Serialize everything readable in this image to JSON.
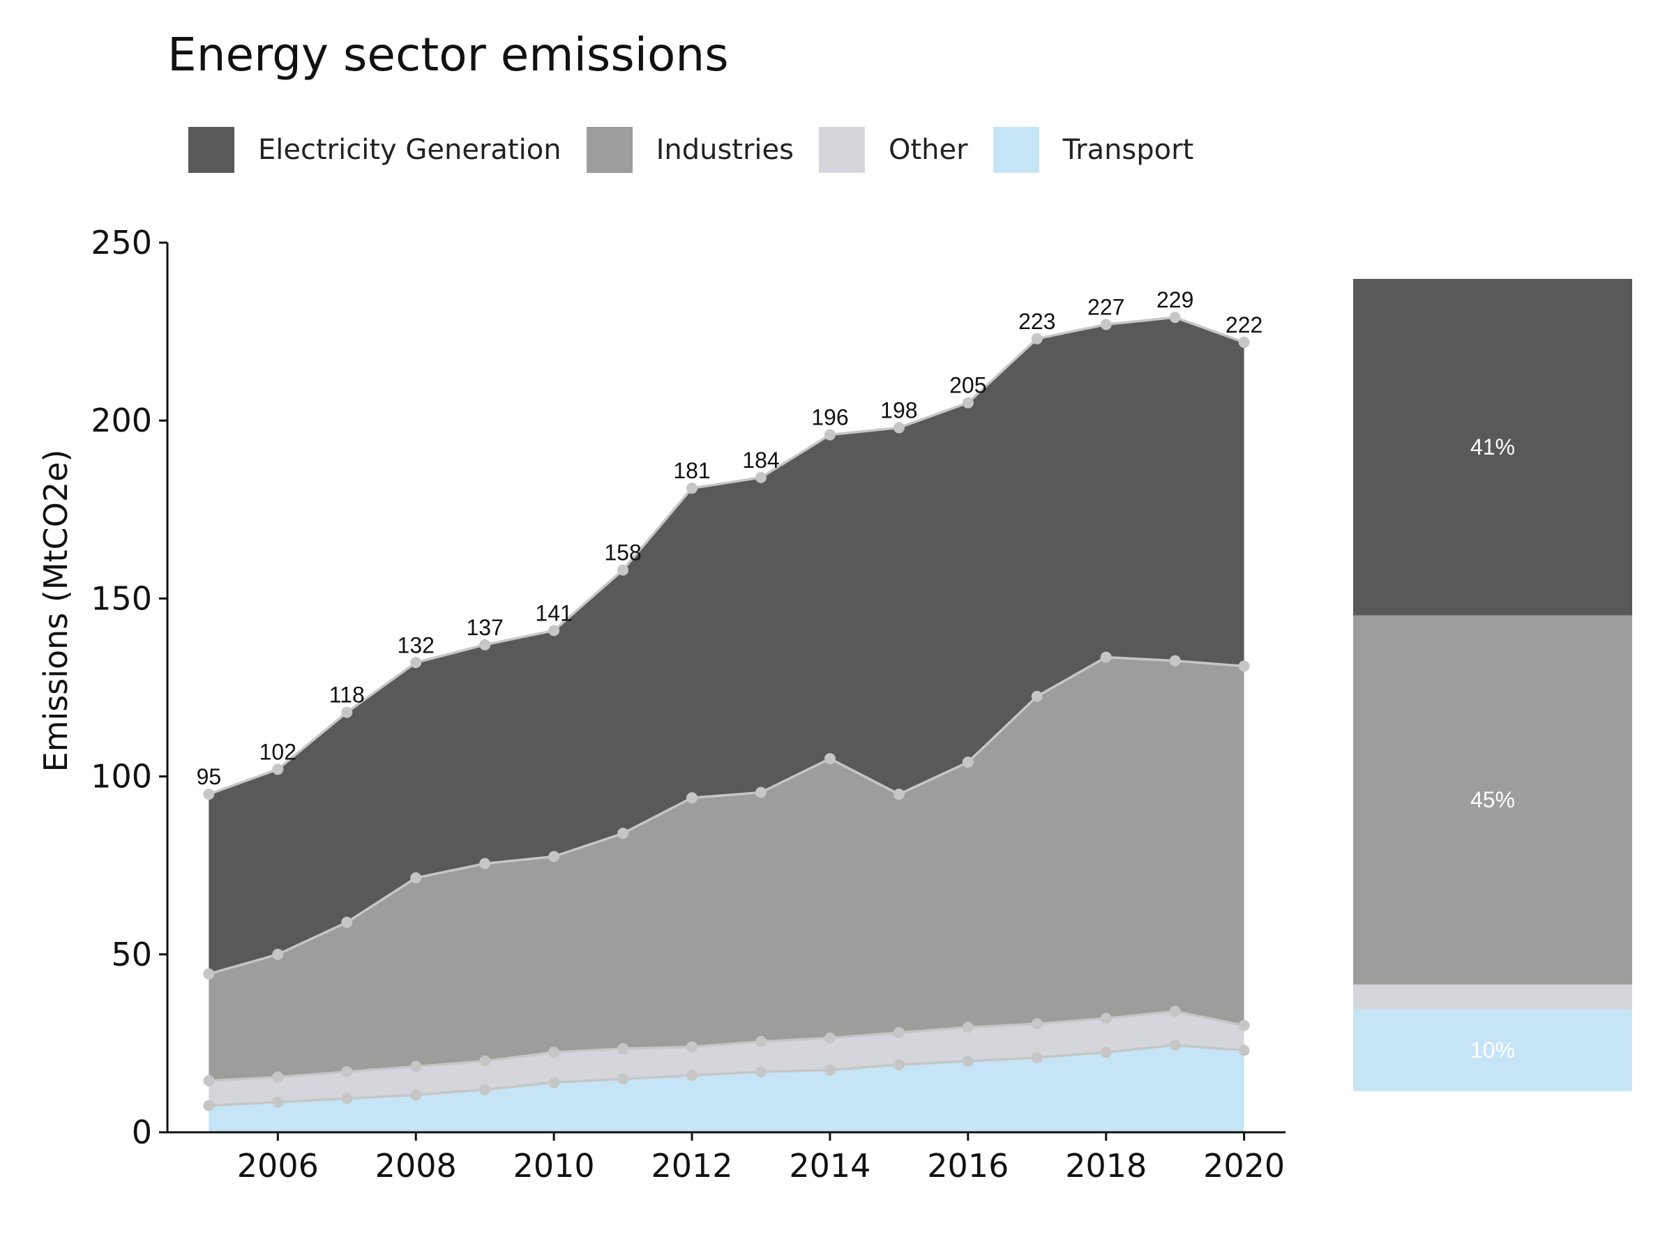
{
  "chart_data": {
    "type": "area",
    "title": "Energy sector emissions",
    "ylabel": "Emissions (MtCO2e)",
    "xlabel": "",
    "ylim": [
      0,
      250
    ],
    "xlim": [
      2004.4,
      2020.6
    ],
    "yticks": [
      0,
      50,
      100,
      150,
      200,
      250
    ],
    "xticks": [
      2006,
      2008,
      2010,
      2012,
      2014,
      2016,
      2018,
      2020
    ],
    "stacked": true,
    "legend_position": "top-left",
    "grid": false,
    "x": [
      2005,
      2006,
      2007,
      2008,
      2009,
      2010,
      2011,
      2012,
      2013,
      2014,
      2015,
      2016,
      2017,
      2018,
      2019,
      2020
    ],
    "series": [
      {
        "name": "Transport",
        "color": "#c5e4f5",
        "values": [
          7.5,
          8.5,
          9.5,
          10.5,
          12,
          14,
          15,
          16,
          17,
          17.5,
          19,
          20,
          21,
          22.5,
          24.5,
          23
        ]
      },
      {
        "name": "Other",
        "color": "#d5d6db",
        "values": [
          7,
          7,
          7.5,
          8,
          8,
          8.5,
          8.5,
          8,
          8.5,
          9,
          9,
          9.5,
          9.5,
          9.5,
          9.5,
          7
        ]
      },
      {
        "name": "Industries",
        "color": "#9d9d9b",
        "values": [
          30,
          34.5,
          42,
          53,
          55.5,
          55,
          60.5,
          70,
          70,
          78.5,
          67,
          74.5,
          92,
          101.5,
          98.5,
          101
        ]
      },
      {
        "name": "Electricity Generation",
        "color": "#595957",
        "values": [
          50.5,
          52,
          59,
          60.5,
          61.5,
          63.5,
          74,
          87,
          88.5,
          91,
          103,
          101,
          100.5,
          93.5,
          96.5,
          91
        ]
      }
    ],
    "totals": [
      95,
      102,
      118,
      132,
      137,
      141,
      158,
      181,
      184,
      196,
      198,
      205,
      223,
      227,
      229,
      222
    ],
    "legend": [
      {
        "name": "Electricity Generation",
        "color": "#595957"
      },
      {
        "name": "Industries",
        "color": "#9d9d9b"
      },
      {
        "name": "Other",
        "color": "#d5d6db"
      },
      {
        "name": "Transport",
        "color": "#c5e4f5"
      }
    ],
    "share_bar": {
      "type": "stacked-bar",
      "segments": [
        {
          "name": "Transport",
          "value": 10,
          "label": "10%",
          "color": "#c5e4f5"
        },
        {
          "name": "Other",
          "value": 3,
          "label": "",
          "color": "#d5d6db"
        },
        {
          "name": "Industries",
          "value": 45,
          "label": "45%",
          "color": "#9d9d9b"
        },
        {
          "name": "Electricity Generation",
          "value": 41,
          "label": "41%",
          "color": "#595957"
        }
      ]
    },
    "line_color": "#c6c6c6"
  }
}
